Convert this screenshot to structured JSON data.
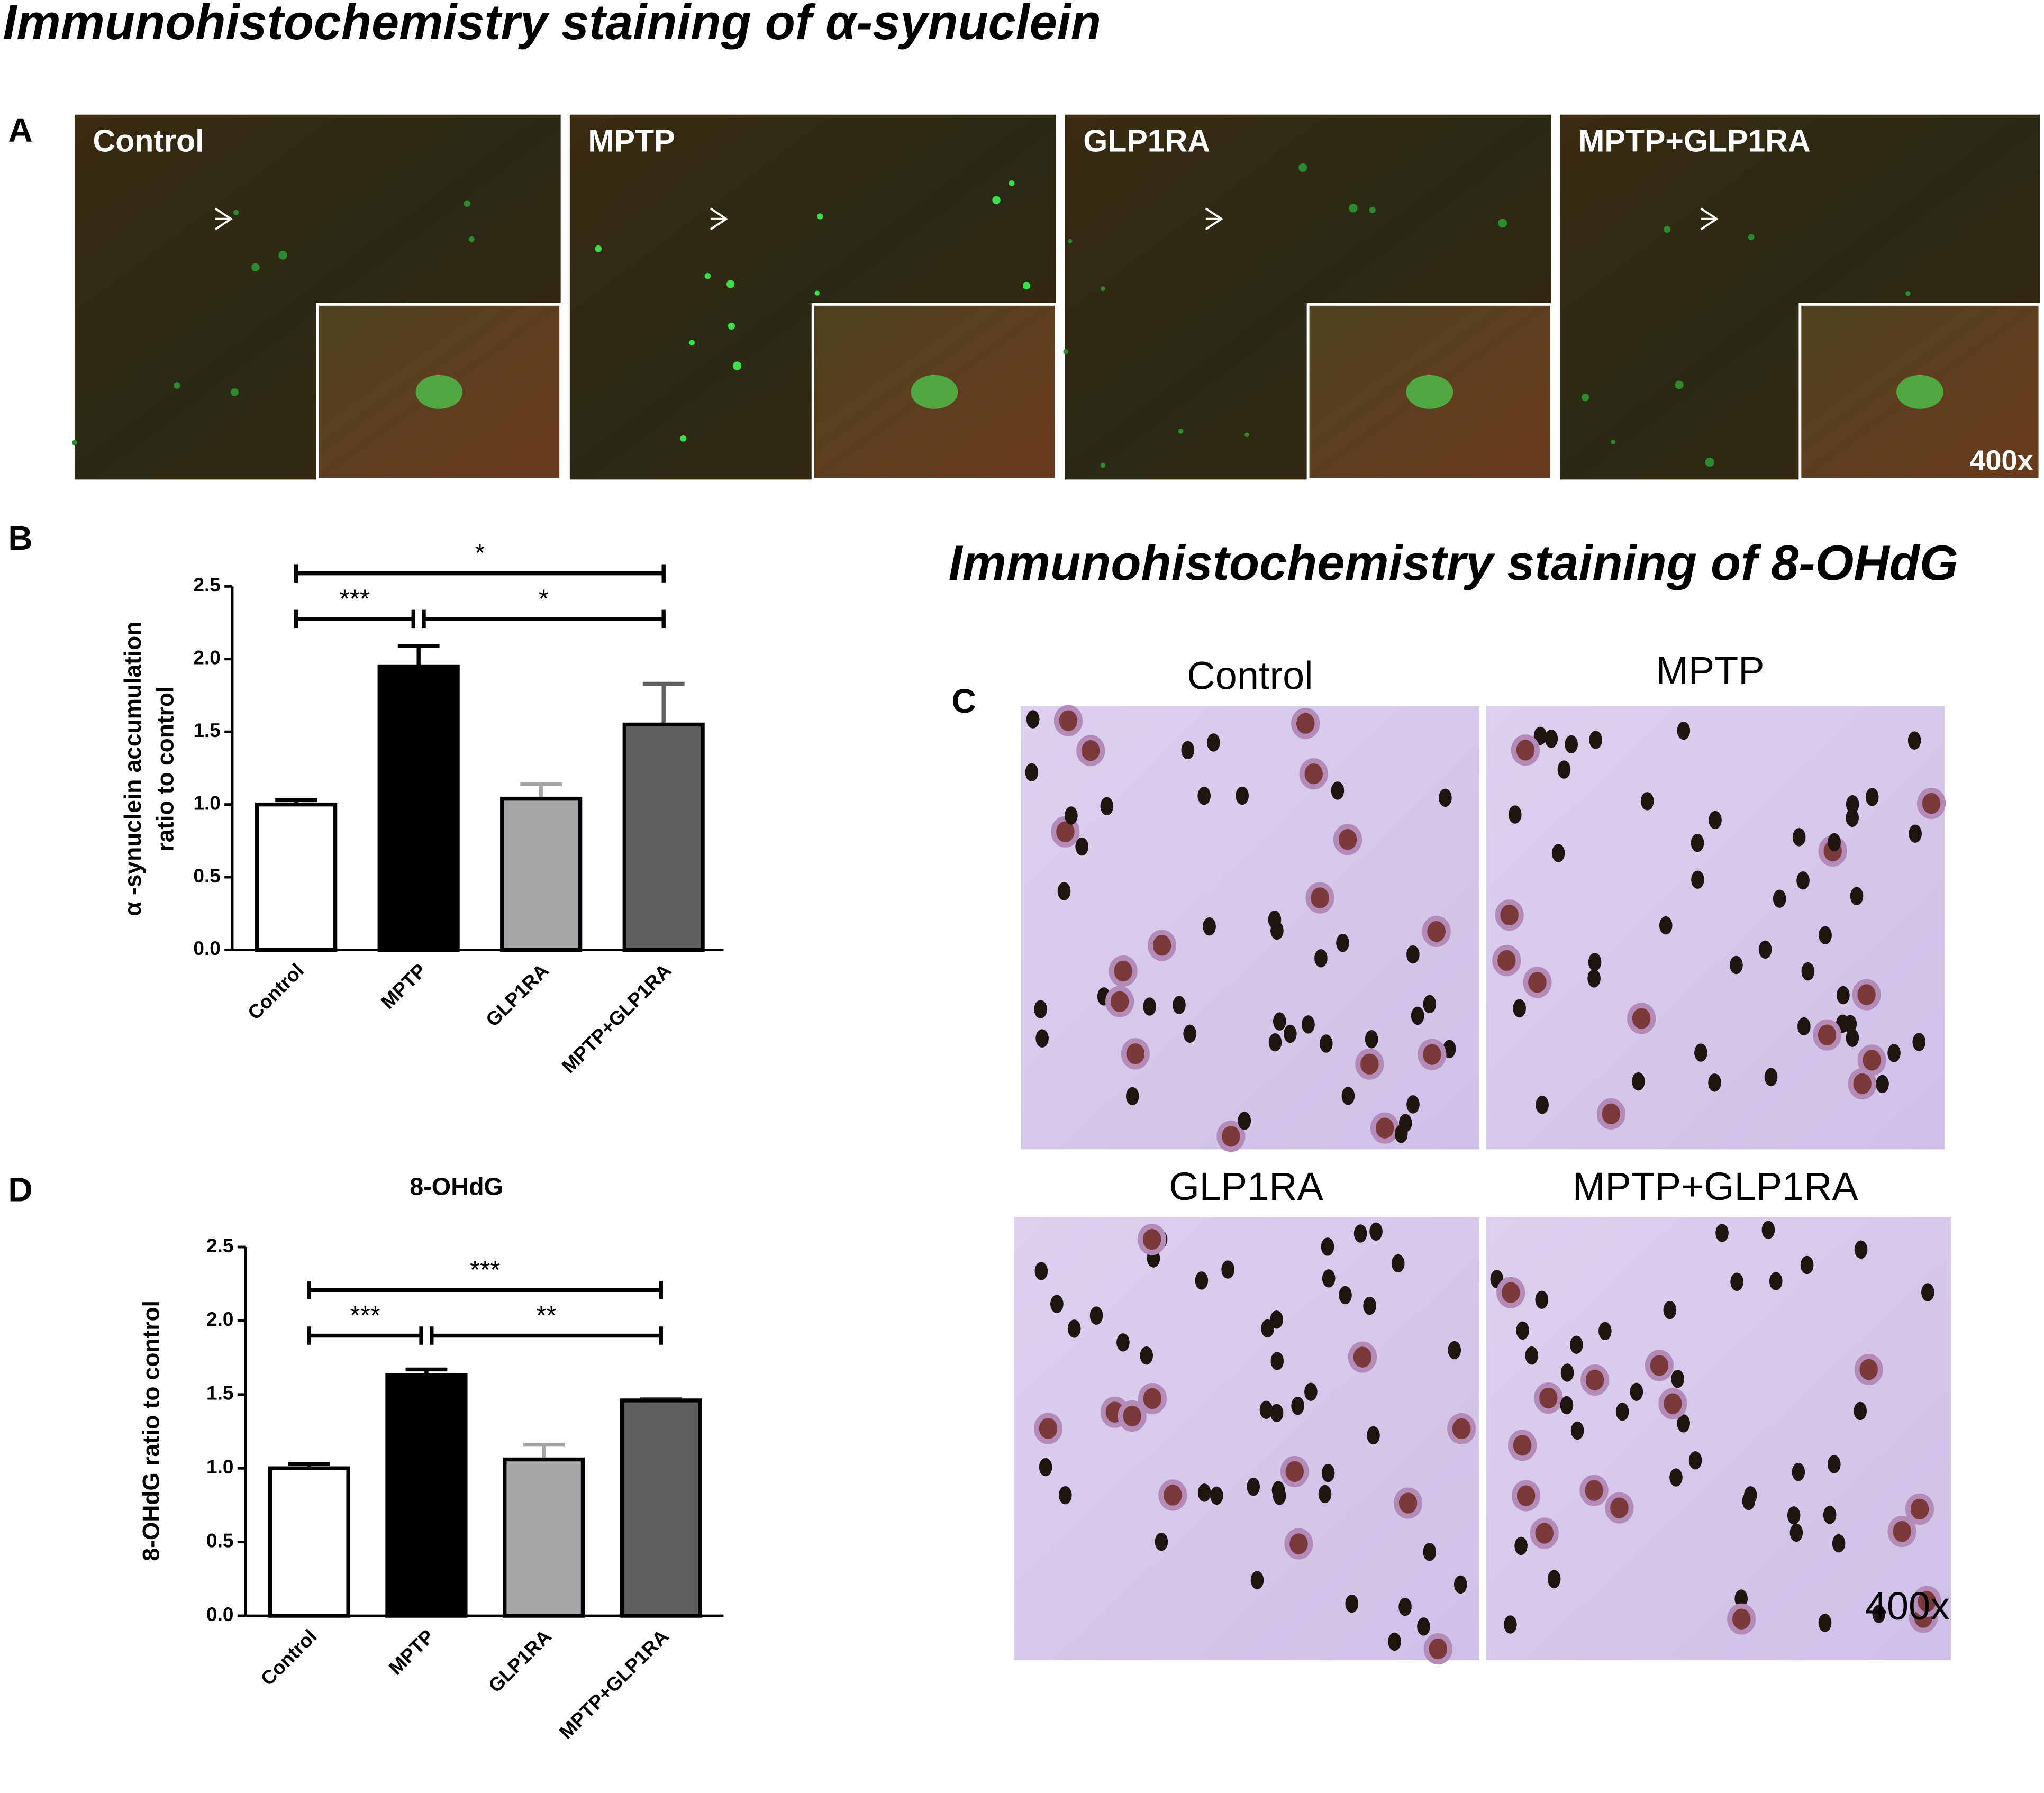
{
  "figure_title": "Immunohistochemistry staining of α-synuclein",
  "panel_c_title": "Immunohistochemistry staining of 8-OHdG",
  "panel_letters": [
    "A",
    "B",
    "C",
    "D"
  ],
  "panel_a": {
    "labels": [
      "Control",
      "MPTP",
      "GLP1RA",
      "MPTP+GLP1RA"
    ],
    "magnification": "400x"
  },
  "panel_c": {
    "labels": [
      "Control",
      "MPTP",
      "GLP1RA",
      "MPTP+GLP1RA"
    ],
    "magnification": "400x"
  },
  "chart_data": [
    {
      "type": "bar",
      "y_label": [
        "α -synuclein accumulation",
        "ratio to control"
      ],
      "categories": [
        "Control",
        "MPTP",
        "GLP1RA",
        "MPTP+GLP1RA"
      ],
      "values": [
        1.0,
        1.95,
        1.04,
        1.55
      ],
      "errors": [
        0.03,
        0.14,
        0.1,
        0.28
      ],
      "colors": [
        "#ffffff",
        "#000000",
        "#a7a7aa",
        "#5e5e5e"
      ],
      "ylim": [
        0,
        2.5
      ],
      "yticks": [
        {
          "value": 0,
          "label": "0.0"
        },
        0.5,
        {
          "value": 1,
          "label": "1.0"
        },
        1.5,
        {
          "value": 2,
          "label": "2.0"
        },
        2.5
      ],
      "annotations": [
        "*",
        "***",
        "*"
      ]
    },
    {
      "type": "bar",
      "title": "8-OHdG",
      "y_label": [
        "8-OHdG ratio to control"
      ],
      "categories": [
        "Control",
        "MPTP",
        "GLP1RA",
        "MPTP+GLP1RA"
      ],
      "values": [
        1.0,
        1.63,
        1.06,
        1.46
      ],
      "errors": [
        0.03,
        0.04,
        0.1,
        0.01
      ],
      "colors": [
        "#ffffff",
        "#000000",
        "#a7a7aa",
        "#5e5e5e"
      ],
      "ylim": [
        0,
        2.5
      ],
      "yticks": [
        {
          "value": 0,
          "label": "0.0"
        },
        0.5,
        {
          "value": 1,
          "label": "1.0"
        },
        1.5,
        {
          "value": 2,
          "label": "2.0"
        },
        2.5
      ],
      "annotations": [
        "***",
        "***",
        "**"
      ]
    }
  ]
}
